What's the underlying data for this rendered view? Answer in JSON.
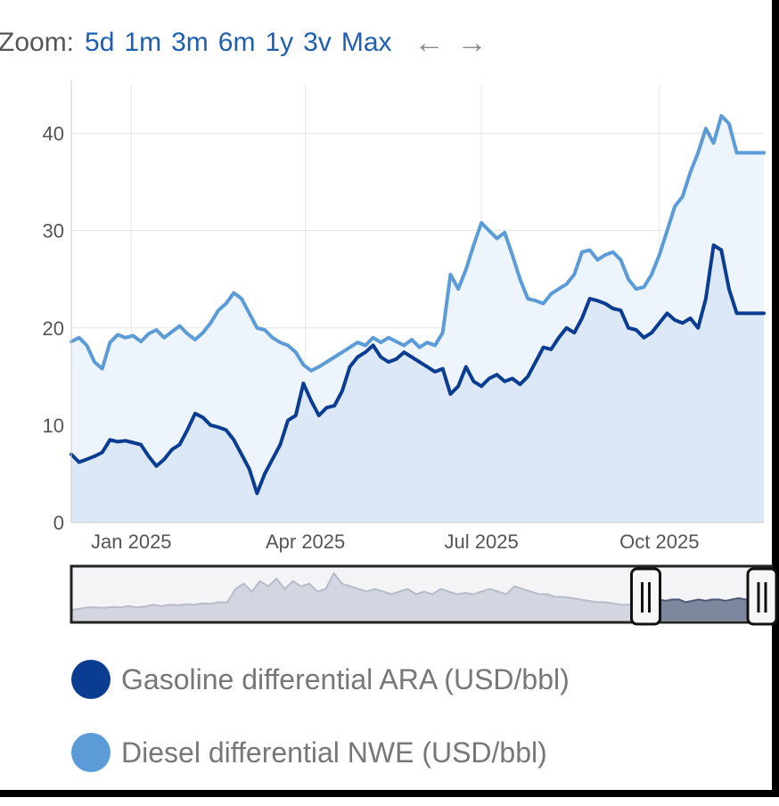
{
  "zoom": {
    "label": "Zoom:",
    "options": [
      "5d",
      "1m",
      "3m",
      "6m",
      "1y",
      "3v",
      "Max"
    ],
    "back_arrow": "←",
    "forward_arrow": "→"
  },
  "chart_data": {
    "type": "area",
    "title": "",
    "xlabel": "",
    "ylabel": "",
    "x_tick_labels": [
      "Jan 2025",
      "Apr 2025",
      "Jul 2025",
      "Oct 2025"
    ],
    "y_ticks": [
      0,
      10,
      20,
      30,
      40
    ],
    "ylim": [
      0,
      45
    ],
    "grid": true,
    "legend_position": "bottom",
    "series": [
      {
        "name": "Diesel differential NWE (USD/bbl)",
        "color": "#5b9bd8",
        "fill": "#eef4fc",
        "x": [
          "2024-12-01",
          "2024-12-05",
          "2024-12-09",
          "2024-12-13",
          "2024-12-17",
          "2024-12-21",
          "2024-12-25",
          "2024-12-29",
          "2025-01-02",
          "2025-01-06",
          "2025-01-10",
          "2025-01-14",
          "2025-01-18",
          "2025-01-22",
          "2025-01-26",
          "2025-01-30",
          "2025-02-03",
          "2025-02-07",
          "2025-02-11",
          "2025-02-15",
          "2025-02-19",
          "2025-02-23",
          "2025-02-27",
          "2025-03-03",
          "2025-03-07",
          "2025-03-11",
          "2025-03-15",
          "2025-03-19",
          "2025-03-23",
          "2025-03-27",
          "2025-03-31",
          "2025-04-04",
          "2025-04-08",
          "2025-04-12",
          "2025-04-16",
          "2025-04-20",
          "2025-04-24",
          "2025-04-28",
          "2025-05-02",
          "2025-05-06",
          "2025-05-10",
          "2025-05-14",
          "2025-05-18",
          "2025-05-22",
          "2025-05-26",
          "2025-05-30",
          "2025-06-03",
          "2025-06-07",
          "2025-06-11",
          "2025-06-15",
          "2025-06-19",
          "2025-06-23",
          "2025-06-27",
          "2025-07-01",
          "2025-07-05",
          "2025-07-09",
          "2025-07-13",
          "2025-07-17",
          "2025-07-21",
          "2025-07-25",
          "2025-07-29",
          "2025-08-02",
          "2025-08-06",
          "2025-08-10",
          "2025-08-14",
          "2025-08-18",
          "2025-08-22",
          "2025-08-26",
          "2025-08-30",
          "2025-09-03",
          "2025-09-07",
          "2025-09-11",
          "2025-09-15",
          "2025-09-19",
          "2025-09-23",
          "2025-09-27",
          "2025-10-01",
          "2025-10-05",
          "2025-10-09",
          "2025-10-13",
          "2025-10-17",
          "2025-10-21",
          "2025-10-25",
          "2025-10-29",
          "2025-11-02",
          "2025-11-06",
          "2025-11-10",
          "2025-11-14",
          "2025-11-18",
          "2025-11-22",
          "2025-11-24"
        ],
        "values": [
          18.6,
          19.0,
          18.2,
          16.5,
          15.8,
          18.5,
          19.3,
          19.0,
          19.2,
          18.6,
          19.4,
          19.8,
          19.0,
          19.6,
          20.2,
          19.4,
          18.8,
          19.5,
          20.5,
          21.8,
          22.5,
          23.6,
          23.0,
          21.5,
          20.0,
          19.8,
          19.0,
          18.5,
          18.2,
          17.5,
          16.2,
          15.6,
          16.0,
          16.5,
          17.0,
          17.5,
          18.0,
          18.5,
          18.2,
          19.0,
          18.5,
          19.0,
          18.6,
          18.2,
          18.8,
          18.0,
          18.5,
          18.2,
          19.5,
          25.5,
          24.0,
          26.0,
          28.5,
          30.8,
          30.0,
          29.2,
          29.8,
          27.5,
          25.0,
          23.0,
          22.8,
          22.5,
          23.5,
          24.0,
          24.5,
          25.5,
          27.8,
          28.0,
          27.0,
          27.5,
          27.8,
          27.0,
          25.0,
          24.0,
          24.2,
          25.5,
          27.5,
          30.0,
          32.5,
          33.5,
          36.0,
          38.0,
          40.5,
          39.0,
          41.8,
          41.0,
          38.0,
          38.0,
          38.0,
          38.0,
          38.0
        ]
      },
      {
        "name": "Gasoline differential ARA (USD/bbl)",
        "color": "#0a3d91",
        "fill": "#d8e5f4",
        "x": [
          "2024-12-01",
          "2024-12-05",
          "2024-12-09",
          "2024-12-13",
          "2024-12-17",
          "2024-12-21",
          "2024-12-25",
          "2024-12-29",
          "2025-01-02",
          "2025-01-06",
          "2025-01-10",
          "2025-01-14",
          "2025-01-18",
          "2025-01-22",
          "2025-01-26",
          "2025-01-30",
          "2025-02-03",
          "2025-02-07",
          "2025-02-11",
          "2025-02-15",
          "2025-02-19",
          "2025-02-23",
          "2025-02-27",
          "2025-03-03",
          "2025-03-07",
          "2025-03-11",
          "2025-03-15",
          "2025-03-19",
          "2025-03-23",
          "2025-03-27",
          "2025-03-31",
          "2025-04-04",
          "2025-04-08",
          "2025-04-12",
          "2025-04-16",
          "2025-04-20",
          "2025-04-24",
          "2025-04-28",
          "2025-05-02",
          "2025-05-06",
          "2025-05-10",
          "2025-05-14",
          "2025-05-18",
          "2025-05-22",
          "2025-05-26",
          "2025-05-30",
          "2025-06-03",
          "2025-06-07",
          "2025-06-11",
          "2025-06-15",
          "2025-06-19",
          "2025-06-23",
          "2025-06-27",
          "2025-07-01",
          "2025-07-05",
          "2025-07-09",
          "2025-07-13",
          "2025-07-17",
          "2025-07-21",
          "2025-07-25",
          "2025-07-29",
          "2025-08-02",
          "2025-08-06",
          "2025-08-10",
          "2025-08-14",
          "2025-08-18",
          "2025-08-22",
          "2025-08-26",
          "2025-08-30",
          "2025-09-03",
          "2025-09-07",
          "2025-09-11",
          "2025-09-15",
          "2025-09-19",
          "2025-09-23",
          "2025-09-27",
          "2025-10-01",
          "2025-10-05",
          "2025-10-09",
          "2025-10-13",
          "2025-10-17",
          "2025-10-21",
          "2025-10-25",
          "2025-10-29",
          "2025-11-02",
          "2025-11-06",
          "2025-11-10",
          "2025-11-14",
          "2025-11-18",
          "2025-11-22",
          "2025-11-24"
        ],
        "values": [
          7.0,
          6.2,
          6.5,
          6.8,
          7.2,
          8.5,
          8.3,
          8.4,
          8.2,
          8.0,
          6.8,
          5.8,
          6.5,
          7.5,
          8.0,
          9.5,
          11.2,
          10.8,
          10.0,
          9.8,
          9.5,
          8.5,
          7.0,
          5.5,
          3.0,
          5.0,
          6.5,
          8.0,
          10.5,
          11.0,
          14.3,
          12.5,
          11.0,
          11.8,
          12.0,
          13.5,
          16.0,
          17.0,
          17.5,
          18.2,
          17.0,
          16.5,
          16.8,
          17.5,
          17.0,
          16.5,
          16.0,
          15.5,
          15.8,
          13.2,
          14.0,
          16.0,
          14.5,
          14.0,
          14.8,
          15.2,
          14.5,
          14.8,
          14.2,
          15.0,
          16.5,
          18.0,
          17.8,
          19.0,
          20.0,
          19.5,
          21.0,
          23.0,
          22.8,
          22.5,
          22.0,
          21.8,
          20.0,
          19.8,
          19.0,
          19.5,
          20.5,
          21.5,
          20.8,
          20.5,
          21.0,
          20.0,
          23.0,
          28.5,
          28.0,
          24.0,
          21.5,
          21.5,
          21.5,
          21.5,
          21.5
        ]
      }
    ]
  },
  "navigator": {
    "series": [
      14,
      14.5,
      15,
      15,
      14.8,
      15.2,
      15,
      15.5,
      15,
      15.3,
      16,
      15.5,
      16,
      15.8,
      16.2,
      16,
      16.5,
      16.3,
      17,
      16.8,
      22,
      24,
      21,
      25,
      23,
      26,
      22,
      25,
      23,
      24,
      21,
      22,
      28,
      24,
      23,
      22,
      21,
      22,
      21,
      20,
      21,
      22,
      20,
      21,
      20,
      22,
      21,
      20,
      20.5,
      20,
      21,
      22,
      21,
      20,
      23,
      22,
      21,
      20,
      20,
      19,
      19,
      18.5,
      18,
      17.5,
      17,
      17,
      16.5,
      16,
      16,
      16,
      16
    ],
    "selected_series": [
      16,
      17,
      18,
      17.5,
      18,
      18,
      17,
      17.5,
      18,
      17.5,
      18,
      18,
      17.5,
      18,
      18.5,
      18,
      18,
      19,
      18.5,
      18
    ],
    "selection_start": 0.82
  },
  "legend": [
    {
      "label": "Gasoline differential ARA (USD/bbl)",
      "color": "#0a3d91"
    },
    {
      "label": "Diesel differential NWE (USD/bbl)",
      "color": "#5b9bd8"
    }
  ]
}
